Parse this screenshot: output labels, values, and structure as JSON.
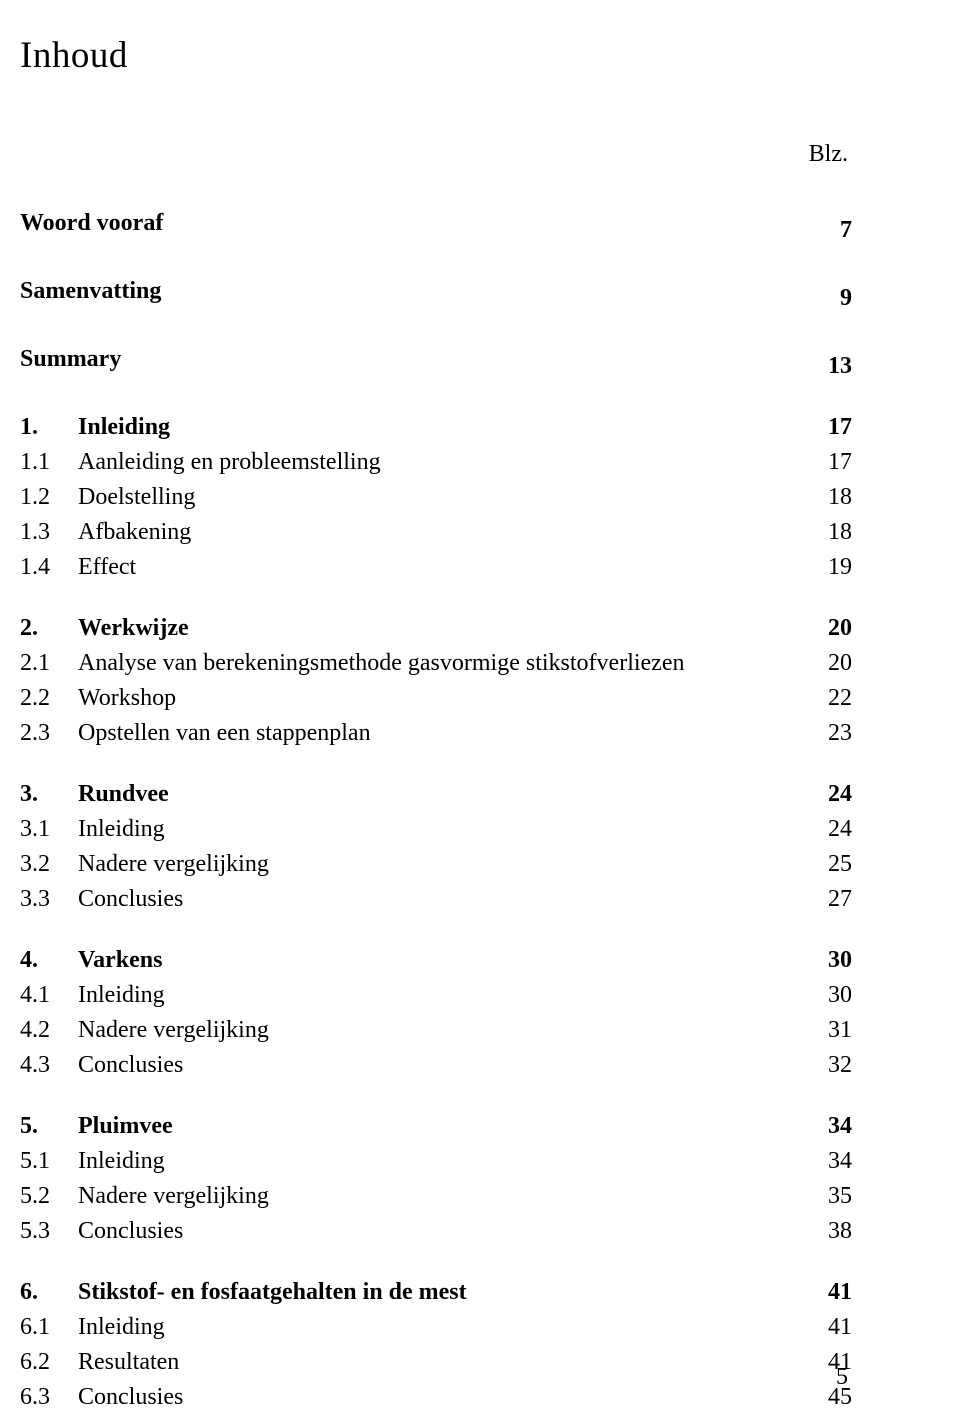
{
  "title": "Inhoud",
  "header_label": "Blz.",
  "footer_page": "5",
  "sections": [
    {
      "type": "row",
      "bold": true,
      "indent": 0,
      "num": "",
      "label": "Woord vooraf",
      "page": "7"
    },
    {
      "type": "gap"
    },
    {
      "type": "row",
      "bold": true,
      "indent": 0,
      "num": "",
      "label": "Samenvatting",
      "page": "9"
    },
    {
      "type": "gap"
    },
    {
      "type": "row",
      "bold": true,
      "indent": 0,
      "num": "",
      "label": "Summary",
      "page": "13"
    },
    {
      "type": "gap"
    },
    {
      "type": "row",
      "bold": true,
      "indent": 0,
      "num": "1.",
      "label": "Inleiding",
      "page": "17"
    },
    {
      "type": "row",
      "bold": false,
      "indent": 0,
      "num": "1.1",
      "label": "Aanleiding en probleemstelling",
      "page": "17"
    },
    {
      "type": "row",
      "bold": false,
      "indent": 0,
      "num": "1.2",
      "label": "Doelstelling",
      "page": "18"
    },
    {
      "type": "row",
      "bold": false,
      "indent": 0,
      "num": "1.3",
      "label": "Afbakening",
      "page": "18"
    },
    {
      "type": "row",
      "bold": false,
      "indent": 0,
      "num": "1.4",
      "label": "Effect",
      "page": "19"
    },
    {
      "type": "gap"
    },
    {
      "type": "row",
      "bold": true,
      "indent": 0,
      "num": "2.",
      "label": "Werkwijze",
      "page": "20"
    },
    {
      "type": "row",
      "bold": false,
      "indent": 0,
      "num": "2.1",
      "label": "Analyse van berekeningsmethode gasvormige stikstofverliezen",
      "page": "20"
    },
    {
      "type": "row",
      "bold": false,
      "indent": 0,
      "num": "2.2",
      "label": "Workshop",
      "page": "22"
    },
    {
      "type": "row",
      "bold": false,
      "indent": 0,
      "num": "2.3",
      "label": "Opstellen van een stappenplan",
      "page": "23"
    },
    {
      "type": "gap"
    },
    {
      "type": "row",
      "bold": true,
      "indent": 0,
      "num": "3.",
      "label": "Rundvee",
      "page": "24"
    },
    {
      "type": "row",
      "bold": false,
      "indent": 0,
      "num": "3.1",
      "label": "Inleiding",
      "page": "24"
    },
    {
      "type": "row",
      "bold": false,
      "indent": 0,
      "num": "3.2",
      "label": "Nadere vergelijking",
      "page": "25"
    },
    {
      "type": "row",
      "bold": false,
      "indent": 0,
      "num": "3.3",
      "label": "Conclusies",
      "page": "27"
    },
    {
      "type": "gap"
    },
    {
      "type": "row",
      "bold": true,
      "indent": 0,
      "num": "4.",
      "label": "Varkens",
      "page": "30"
    },
    {
      "type": "row",
      "bold": false,
      "indent": 0,
      "num": "4.1",
      "label": "Inleiding",
      "page": "30"
    },
    {
      "type": "row",
      "bold": false,
      "indent": 0,
      "num": "4.2",
      "label": "Nadere vergelijking",
      "page": "31"
    },
    {
      "type": "row",
      "bold": false,
      "indent": 0,
      "num": "4.3",
      "label": "Conclusies",
      "page": "32"
    },
    {
      "type": "gap"
    },
    {
      "type": "row",
      "bold": true,
      "indent": 0,
      "num": "5.",
      "label": "Pluimvee",
      "page": "34"
    },
    {
      "type": "row",
      "bold": false,
      "indent": 0,
      "num": "5.1",
      "label": "Inleiding",
      "page": "34"
    },
    {
      "type": "row",
      "bold": false,
      "indent": 0,
      "num": "5.2",
      "label": "Nadere vergelijking",
      "page": "35"
    },
    {
      "type": "row",
      "bold": false,
      "indent": 0,
      "num": "5.3",
      "label": "Conclusies",
      "page": "38"
    },
    {
      "type": "gap"
    },
    {
      "type": "row",
      "bold": true,
      "indent": 0,
      "num": "6.",
      "label": "Stikstof- en fosfaatgehalten in de mest",
      "page": "41"
    },
    {
      "type": "row",
      "bold": false,
      "indent": 0,
      "num": "6.1",
      "label": "Inleiding",
      "page": "41"
    },
    {
      "type": "row",
      "bold": false,
      "indent": 0,
      "num": "6.2",
      "label": "Resultaten",
      "page": "41"
    },
    {
      "type": "row",
      "bold": false,
      "indent": 0,
      "num": "6.3",
      "label": "Conclusies",
      "page": "45"
    }
  ]
}
